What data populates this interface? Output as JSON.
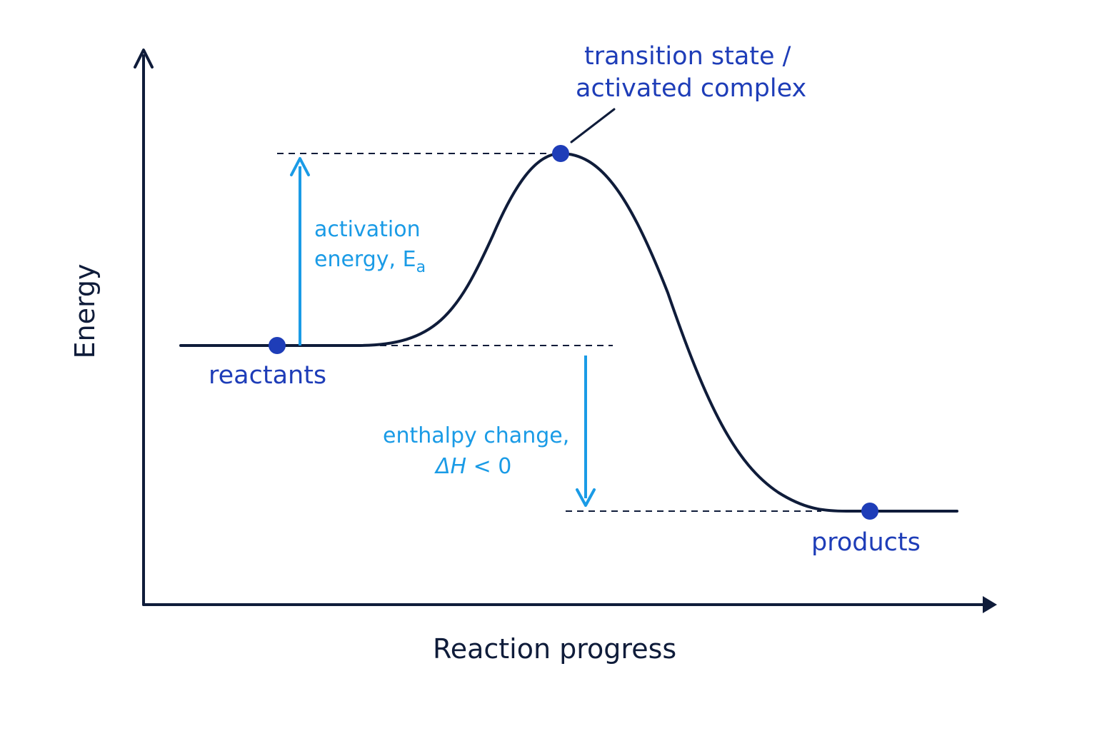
{
  "axes": {
    "y_label": "Energy",
    "x_label": "Reaction progress"
  },
  "states": {
    "reactants": "reactants",
    "products": "products",
    "transition_line1": "transition state /",
    "transition_line2": "activated complex"
  },
  "activation": {
    "line1": "activation",
    "line2_prefix": "energy, E",
    "line2_subscript": "a"
  },
  "enthalpy": {
    "line1": "enthalpy change,",
    "line2_symbol": "ΔH",
    "line2_rest": " < 0"
  },
  "colors": {
    "axis": "#0f1c3a",
    "curve": "#0f1c3a",
    "state_label": "#1e3db8",
    "point": "#1e3db8",
    "accent": "#1a9be6"
  }
}
